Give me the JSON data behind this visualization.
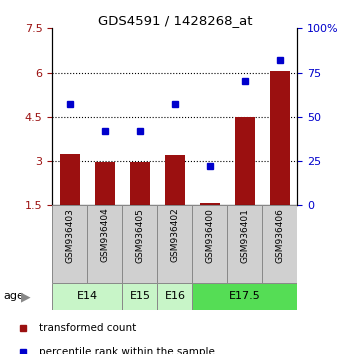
{
  "title": "GDS4591 / 1428268_at",
  "samples": [
    "GSM936403",
    "GSM936404",
    "GSM936405",
    "GSM936402",
    "GSM936400",
    "GSM936401",
    "GSM936406"
  ],
  "bar_values": [
    3.25,
    2.97,
    2.97,
    3.2,
    1.57,
    4.5,
    6.05
  ],
  "dot_values": [
    57,
    42,
    42,
    57,
    22,
    70,
    82
  ],
  "ylim_left": [
    1.5,
    7.5
  ],
  "ylim_right": [
    0,
    100
  ],
  "yticks_left": [
    1.5,
    3.0,
    4.5,
    6.0,
    7.5
  ],
  "ytick_labels_left": [
    "1.5",
    "3",
    "4.5",
    "6",
    "7.5"
  ],
  "yticks_right": [
    0,
    25,
    50,
    75,
    100
  ],
  "ytick_labels_right": [
    "0",
    "25",
    "50",
    "75",
    "100%"
  ],
  "grid_lines": [
    3.0,
    4.5,
    6.0
  ],
  "bar_color": "#9B1010",
  "dot_color": "#0000CC",
  "age_groups": [
    {
      "label": "E14",
      "start": 0,
      "end": 2,
      "color": "#C8F5C8"
    },
    {
      "label": "E15",
      "start": 2,
      "end": 3,
      "color": "#C8F5C8"
    },
    {
      "label": "E16",
      "start": 3,
      "end": 4,
      "color": "#C8F5C8"
    },
    {
      "label": "E17.5",
      "start": 4,
      "end": 7,
      "color": "#55DD55"
    }
  ],
  "legend_items": [
    {
      "label": "transformed count",
      "color": "#9B1010"
    },
    {
      "label": "percentile rank within the sample",
      "color": "#0000CC"
    }
  ],
  "age_label": "age",
  "sample_bg": "#D0D0D0"
}
